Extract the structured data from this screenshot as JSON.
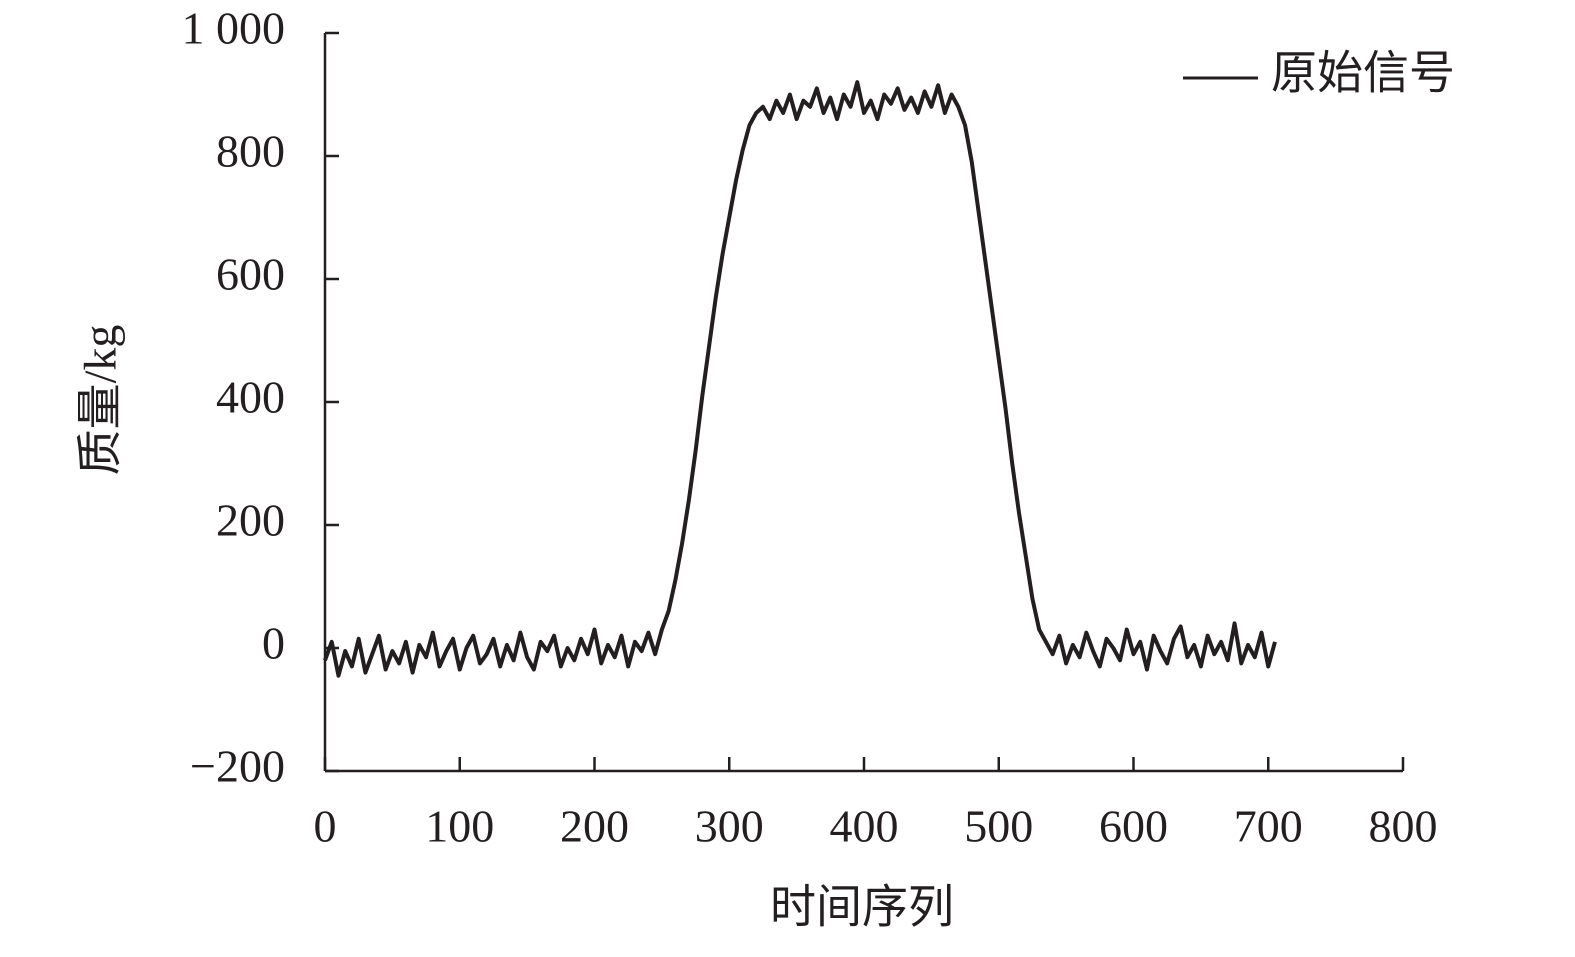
{
  "chart_data": {
    "type": "line",
    "xlabel": "时间序列",
    "ylabel": "质量/kg",
    "xlim": [
      0,
      800
    ],
    "xticks": [
      0,
      100,
      200,
      300,
      400,
      500,
      600,
      700,
      800
    ],
    "ylim": [
      -200,
      1000
    ],
    "yticks": [
      {
        "value": -200,
        "label": "−200"
      },
      0,
      200,
      400,
      600,
      800,
      {
        "value": 1000,
        "label": "1 000"
      }
    ],
    "legend": "upper right",
    "x": [
      0,
      5,
      10,
      15,
      20,
      25,
      30,
      35,
      40,
      45,
      50,
      55,
      60,
      65,
      70,
      75,
      80,
      85,
      90,
      95,
      100,
      105,
      110,
      115,
      120,
      125,
      130,
      135,
      140,
      145,
      150,
      155,
      160,
      165,
      170,
      175,
      180,
      185,
      190,
      195,
      200,
      205,
      210,
      215,
      220,
      225,
      230,
      235,
      240,
      245,
      250,
      255,
      260,
      265,
      270,
      275,
      280,
      285,
      290,
      295,
      300,
      305,
      310,
      315,
      320,
      325,
      330,
      335,
      340,
      345,
      350,
      355,
      360,
      365,
      370,
      375,
      380,
      385,
      390,
      395,
      400,
      405,
      410,
      415,
      420,
      425,
      430,
      435,
      440,
      445,
      450,
      455,
      460,
      465,
      470,
      475,
      480,
      485,
      490,
      495,
      500,
      505,
      510,
      515,
      520,
      525,
      530,
      535,
      540,
      545,
      550,
      555,
      560,
      565,
      570,
      575,
      580,
      585,
      590,
      595,
      600,
      605,
      610,
      615,
      620,
      625,
      630,
      635,
      640,
      645,
      650,
      655,
      660,
      665,
      670,
      675,
      680,
      685,
      690,
      695,
      700,
      705
    ],
    "series": [
      {
        "name": "原始信号",
        "color": "#231f20",
        "values": [
          -20,
          10,
          -45,
          -5,
          -30,
          15,
          -40,
          -10,
          20,
          -35,
          -5,
          -25,
          10,
          -40,
          5,
          -15,
          25,
          -30,
          -5,
          15,
          -35,
          0,
          20,
          -25,
          -10,
          15,
          -30,
          5,
          -20,
          25,
          -15,
          -35,
          10,
          -5,
          20,
          -30,
          0,
          -20,
          15,
          -10,
          30,
          -25,
          5,
          -15,
          20,
          -30,
          10,
          -5,
          25,
          -10,
          30,
          60,
          110,
          170,
          240,
          320,
          410,
          490,
          570,
          640,
          700,
          760,
          810,
          850,
          870,
          880,
          860,
          890,
          870,
          900,
          860,
          890,
          880,
          910,
          870,
          895,
          860,
          900,
          880,
          920,
          870,
          890,
          860,
          900,
          885,
          910,
          875,
          895,
          870,
          905,
          880,
          915,
          870,
          900,
          880,
          850,
          790,
          710,
          630,
          550,
          470,
          390,
          300,
          220,
          150,
          80,
          30,
          10,
          -10,
          20,
          -25,
          5,
          -15,
          25,
          -5,
          -30,
          15,
          0,
          -20,
          30,
          -10,
          10,
          -35,
          20,
          -5,
          -25,
          15,
          35,
          -15,
          5,
          -30,
          20,
          -10,
          10,
          -20,
          40,
          -25,
          5,
          -15,
          25,
          -30,
          10
        ]
      }
    ]
  }
}
